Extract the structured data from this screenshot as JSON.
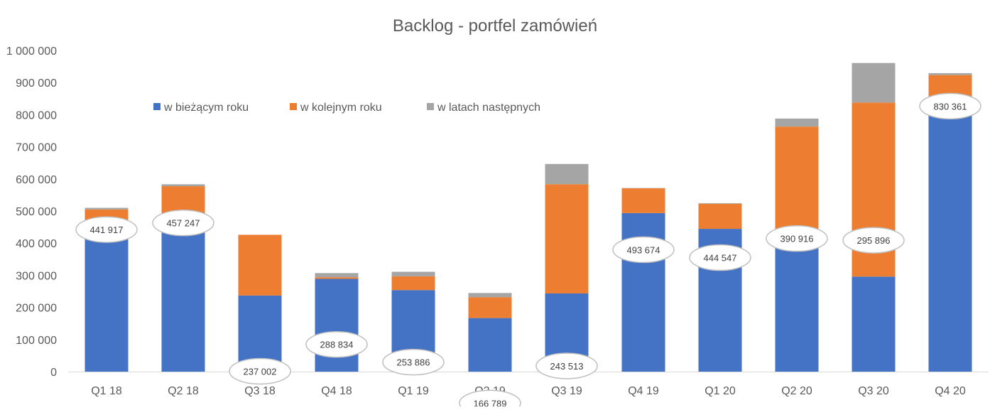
{
  "chart_data": {
    "type": "bar",
    "stacked": true,
    "title": "Backlog - portfel zamówień",
    "xlabel": "",
    "ylabel": "",
    "ylim": [
      0,
      1000000
    ],
    "ytick_step": 100000,
    "ytick_labels": [
      "0",
      "100 000",
      "200 000",
      "300 000",
      "400 000",
      "500 000",
      "600 000",
      "700 000",
      "800 000",
      "900 000",
      "1 000 000"
    ],
    "grid": false,
    "legend_position": "top-left",
    "categories": [
      "Q1 18",
      "Q2 18",
      "Q3 18",
      "Q4 18",
      "Q1 19",
      "Q2 19",
      "Q3 19",
      "Q4 19",
      "Q1 20",
      "Q2 20",
      "Q3 20",
      "Q4 20"
    ],
    "series": [
      {
        "name": "w bieżącym roku",
        "color": "#4472C4",
        "values": [
          441917,
          457247,
          237002,
          288834,
          253886,
          166789,
          243513,
          493674,
          444547,
          390916,
          295896,
          830361
        ]
      },
      {
        "name": "w kolejnym roku",
        "color": "#ED7D31",
        "values": [
          63000,
          120000,
          189000,
          5000,
          43000,
          65000,
          340000,
          77000,
          78000,
          372000,
          542000,
          93000
        ]
      },
      {
        "name": "w latach następnych",
        "color": "#A5A5A5",
        "values": [
          5000,
          6000,
          0,
          13000,
          14000,
          13000,
          63000,
          1000,
          2000,
          25000,
          123000,
          6000
        ]
      }
    ],
    "data_labels": [
      "441 917",
      "457 247",
      "237 002",
      "288 834",
      "253 886",
      "166 789",
      "243 513",
      "493 674",
      "444 547",
      "390 916",
      "295 896",
      "830 361"
    ]
  }
}
